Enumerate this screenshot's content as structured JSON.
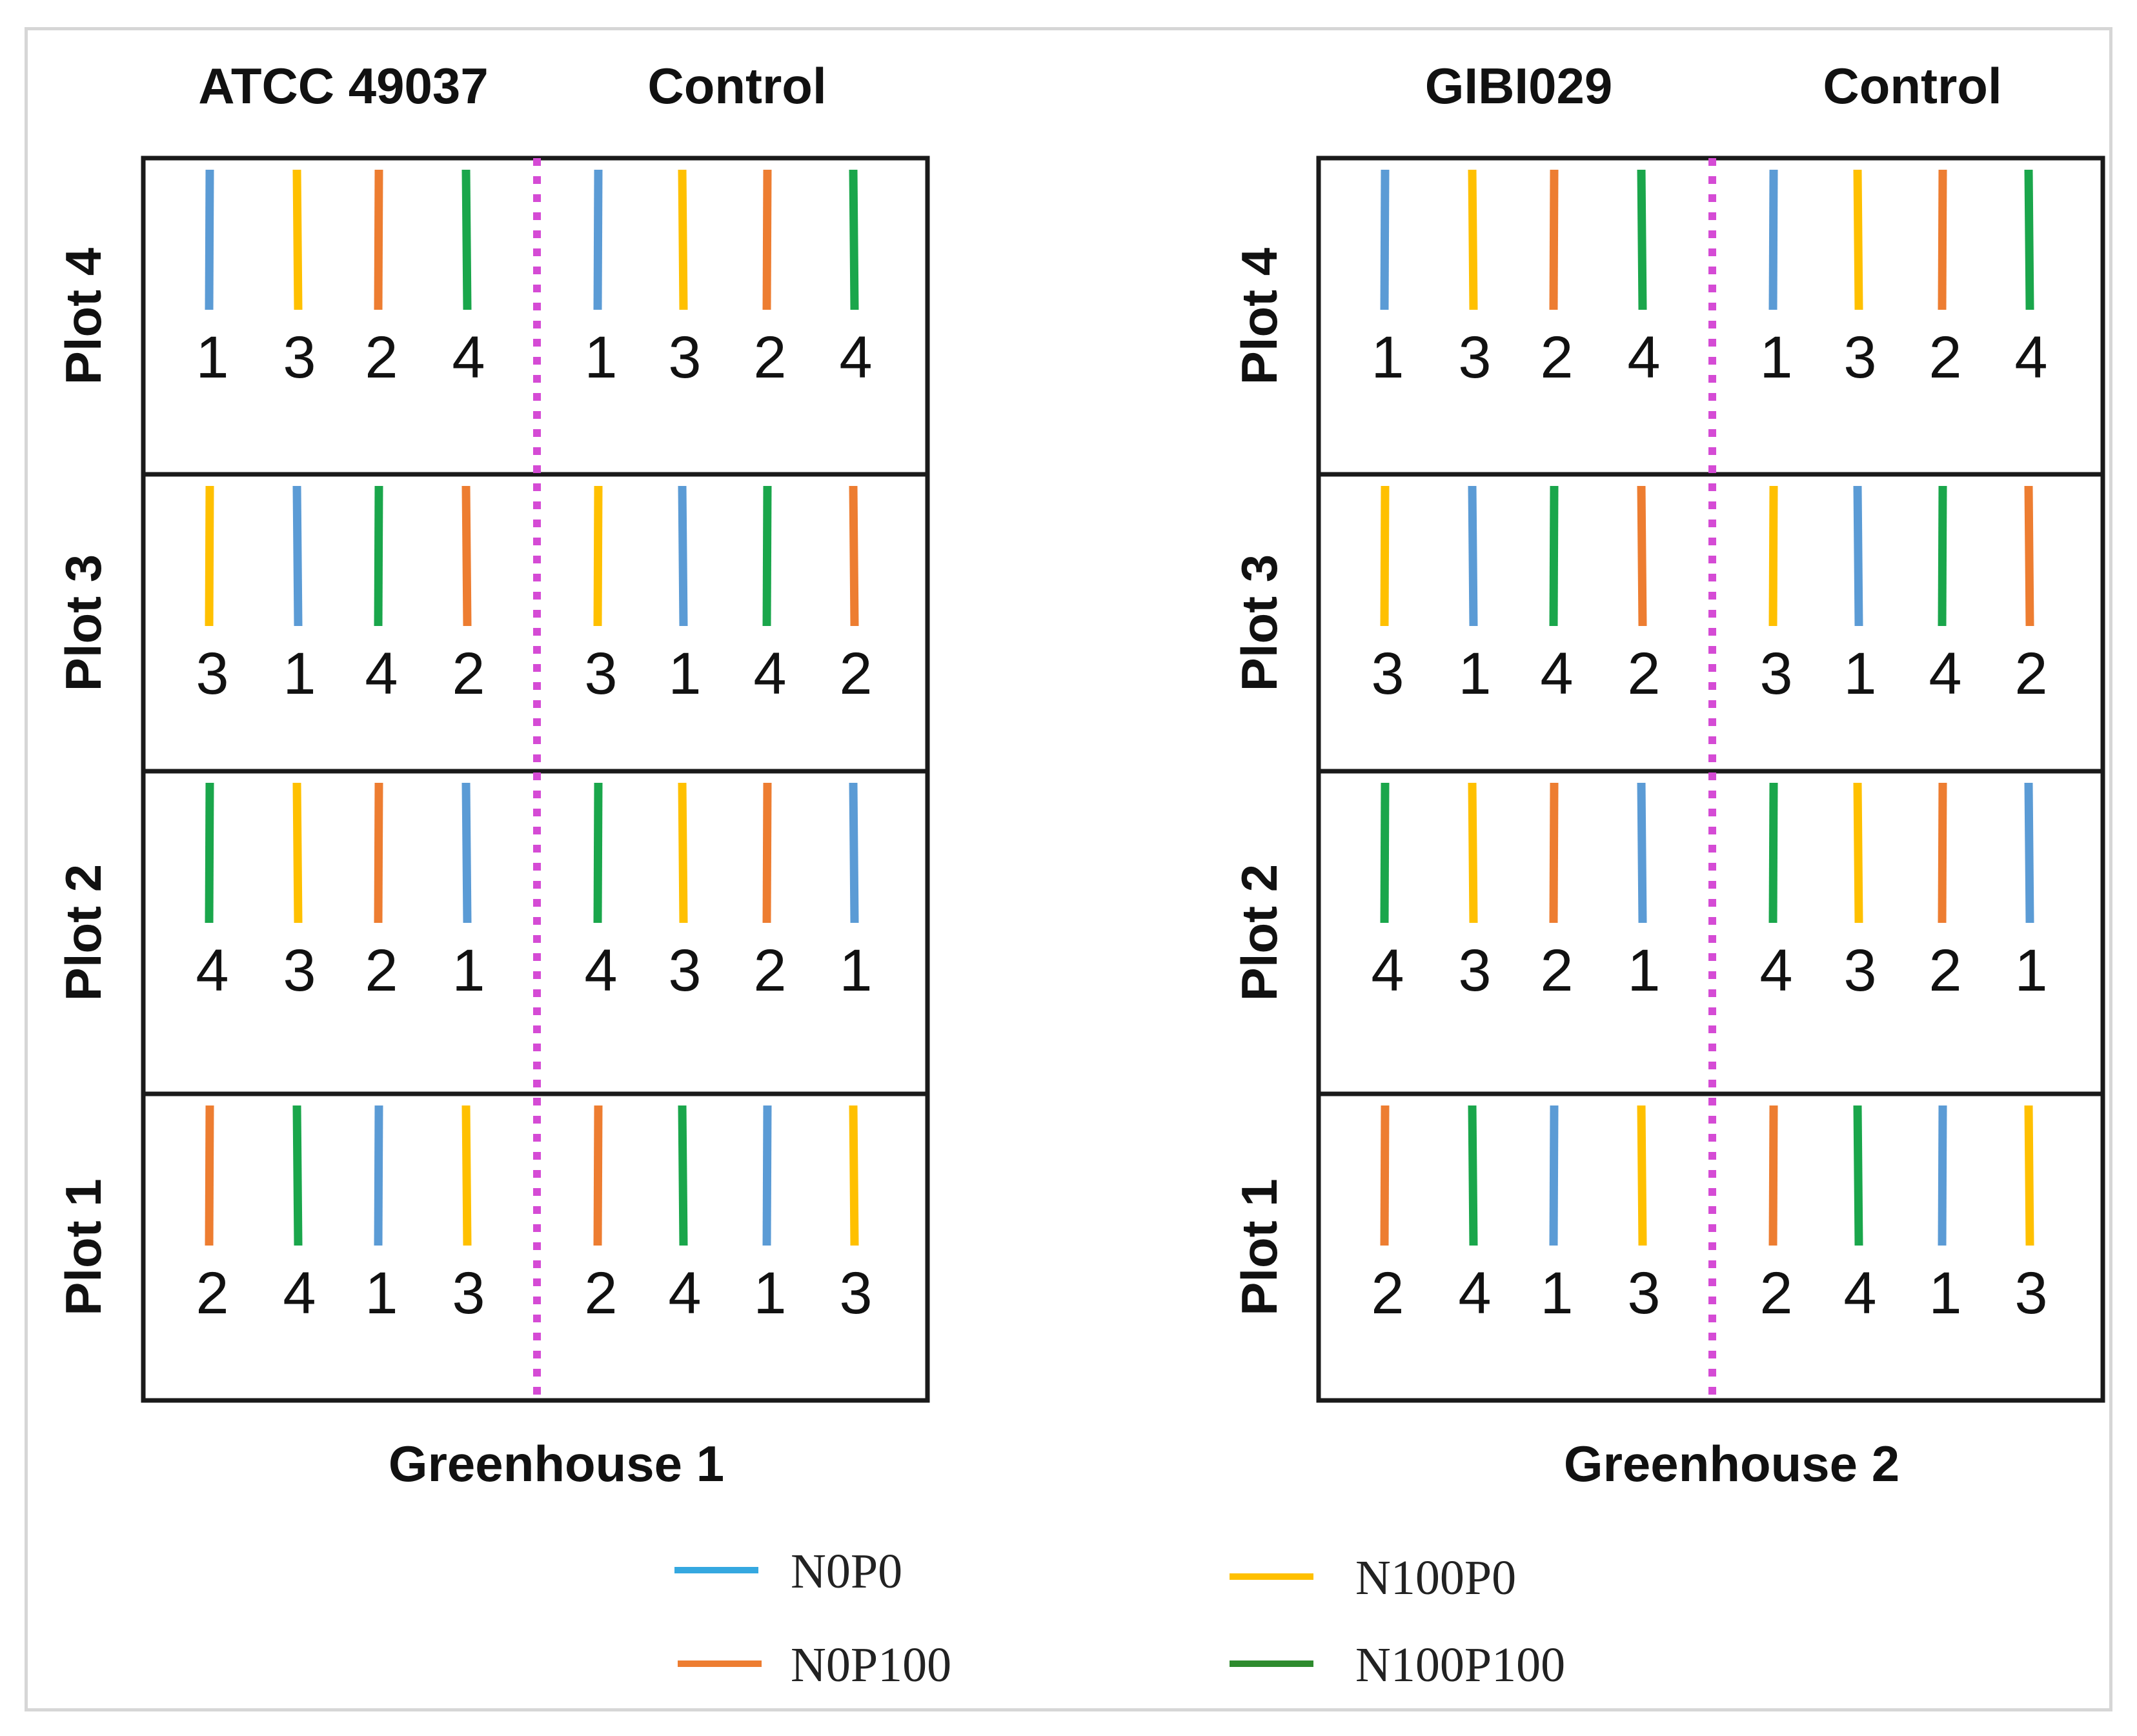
{
  "colors": {
    "1": "#5b9bd5",
    "2": "#ed7d31",
    "3": "#ffc000",
    "4": "#1aa64b",
    "divider": "#d54bd5",
    "border": "#1a1a1a"
  },
  "greenhouses": [
    {
      "label": "Greenhouse 1",
      "left_label": "ATCC 49037",
      "right_label": "Control",
      "plots": [
        {
          "label": "Plot 4",
          "treatments": [
            1,
            3,
            2,
            4
          ]
        },
        {
          "label": "Plot 3",
          "treatments": [
            3,
            1,
            4,
            2
          ]
        },
        {
          "label": "Plot 2",
          "treatments": [
            4,
            3,
            2,
            1
          ]
        },
        {
          "label": "Plot 1",
          "treatments": [
            2,
            4,
            1,
            3
          ]
        }
      ]
    },
    {
      "label": "Greenhouse 2",
      "left_label": "GIBI029",
      "right_label": "Control",
      "plots": [
        {
          "label": "Plot 4",
          "treatments": [
            1,
            3,
            2,
            4
          ]
        },
        {
          "label": "Plot 3",
          "treatments": [
            3,
            1,
            4,
            2
          ]
        },
        {
          "label": "Plot 2",
          "treatments": [
            4,
            3,
            2,
            1
          ]
        },
        {
          "label": "Plot 1",
          "treatments": [
            2,
            4,
            1,
            3
          ]
        }
      ]
    }
  ],
  "legend": [
    {
      "id": "1",
      "label": "N0P0",
      "color": "#35a8e0"
    },
    {
      "id": "3",
      "label": "N100P0",
      "color": "#ffc000"
    },
    {
      "id": "2",
      "label": "N0P100",
      "color": "#ed7d31"
    },
    {
      "id": "4",
      "label": "N100P100",
      "color": "#2e8b2e"
    }
  ]
}
